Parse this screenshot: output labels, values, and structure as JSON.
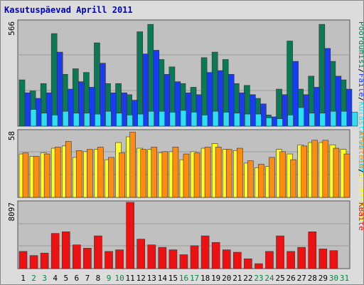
{
  "title": "Kasutuspäevad Aprill 2011",
  "colors": {
    "panel_bg": "#c0c0c0",
    "grid": "#9a9a9a",
    "visits": "#0a7a55",
    "pages": "#1a3cf0",
    "files": "#2ce0f0",
    "unique_visitors": "#ffff22",
    "sites": "#ff8c10",
    "kbytes": "#ee1111",
    "weekend_label": "#008844",
    "weekday_label": "#000000"
  },
  "chart_data": [
    {
      "type": "bar",
      "panel": "top",
      "ymax_label": "566",
      "right_label_parts": [
        {
          "text": "Pöördumisi",
          "color": "#0a7a55"
        },
        {
          "text": "/",
          "color": "#000000"
        },
        {
          "text": "Faile",
          "color": "#1a3cf0"
        },
        {
          "text": "/",
          "color": "#000000"
        },
        {
          "text": "Külastatud lehti",
          "color": "#2ce0f0"
        }
      ],
      "ylim": [
        0,
        566
      ],
      "categories": [
        "1",
        "2",
        "3",
        "4",
        "5",
        "6",
        "7",
        "8",
        "9",
        "10",
        "11",
        "12",
        "13",
        "14",
        "15",
        "16",
        "17",
        "18",
        "19",
        "20",
        "21",
        "22",
        "23",
        "24",
        "25",
        "26",
        "27",
        "28",
        "29",
        "30",
        "31"
      ],
      "series": [
        {
          "name": "Pöördumisi",
          "color": "#0a7a55",
          "values": [
            250,
            190,
            230,
            500,
            280,
            310,
            290,
            450,
            230,
            230,
            170,
            510,
            550,
            360,
            320,
            230,
            210,
            370,
            400,
            360,
            230,
            220,
            150,
            60,
            200,
            460,
            200,
            270,
            550,
            350,
            250
          ]
        },
        {
          "name": "Faile",
          "color": "#1a3cf0",
          "values": [
            180,
            150,
            180,
            400,
            200,
            240,
            210,
            340,
            180,
            180,
            140,
            390,
            410,
            280,
            240,
            180,
            170,
            290,
            300,
            280,
            180,
            170,
            120,
            50,
            170,
            350,
            170,
            210,
            420,
            270,
            200
          ]
        },
        {
          "name": "Külastatud lehti",
          "color": "#2ce0f0",
          "values": [
            90,
            70,
            60,
            80,
            70,
            70,
            65,
            80,
            70,
            60,
            65,
            80,
            80,
            75,
            85,
            75,
            60,
            80,
            75,
            70,
            65,
            65,
            45,
            40,
            60,
            100,
            70,
            70,
            80,
            80,
            75
          ]
        }
      ]
    },
    {
      "type": "bar",
      "panel": "middle",
      "ymax_label": "58",
      "right_label_parts": [
        {
          "text": "Arvuteid",
          "color": "#ff8c10"
        },
        {
          "text": "/",
          "color": "#000000"
        },
        {
          "text": "Külastajad",
          "color": "#ffff22"
        }
      ],
      "ylim": [
        0,
        58
      ],
      "categories": [
        "1",
        "2",
        "3",
        "4",
        "5",
        "6",
        "7",
        "8",
        "9",
        "10",
        "11",
        "12",
        "13",
        "14",
        "15",
        "16",
        "17",
        "18",
        "19",
        "20",
        "21",
        "22",
        "23",
        "24",
        "25",
        "26",
        "27",
        "28",
        "29",
        "30",
        "31"
      ],
      "series": [
        {
          "name": "Külastajad",
          "color": "#ffff22",
          "values": [
            38,
            36,
            39,
            43,
            45,
            35,
            40,
            42,
            33,
            48,
            53,
            43,
            42,
            39,
            40,
            33,
            40,
            43,
            47,
            42,
            41,
            30,
            26,
            27,
            42,
            38,
            46,
            48,
            48,
            46,
            42
          ]
        },
        {
          "name": "Arvuteid",
          "color": "#ff8c10",
          "values": [
            39,
            36,
            38,
            44,
            49,
            41,
            42,
            44,
            35,
            39,
            57,
            42,
            44,
            40,
            44,
            38,
            39,
            44,
            44,
            42,
            43,
            32,
            29,
            35,
            40,
            33,
            45,
            50,
            50,
            43,
            38
          ]
        }
      ]
    },
    {
      "type": "bar",
      "panel": "bottom",
      "ymax_label": "8097",
      "right_label_parts": [
        {
          "text": "KBaite",
          "color": "#ee1111"
        }
      ],
      "ylim": [
        0,
        8097
      ],
      "categories": [
        "1",
        "2",
        "3",
        "4",
        "5",
        "6",
        "7",
        "8",
        "9",
        "10",
        "11",
        "12",
        "13",
        "14",
        "15",
        "16",
        "17",
        "18",
        "19",
        "20",
        "21",
        "22",
        "23",
        "24",
        "25",
        "26",
        "27",
        "28",
        "29",
        "30",
        "31"
      ],
      "series": [
        {
          "name": "KBaite",
          "color": "#ee1111",
          "values": [
            2100,
            1600,
            1900,
            4300,
            4500,
            2900,
            2500,
            4000,
            2100,
            2300,
            8097,
            3600,
            2900,
            2600,
            2300,
            1700,
            2800,
            4000,
            3200,
            2300,
            2000,
            1200,
            600,
            2100,
            4000,
            2100,
            2600,
            4500,
            2400,
            2200,
            0
          ]
        }
      ]
    }
  ],
  "x_labels": {
    "days": [
      "1",
      "2",
      "3",
      "4",
      "5",
      "6",
      "7",
      "8",
      "9",
      "10",
      "11",
      "12",
      "13",
      "14",
      "15",
      "16",
      "17",
      "18",
      "19",
      "20",
      "21",
      "22",
      "23",
      "24",
      "25",
      "26",
      "27",
      "28",
      "29",
      "30",
      "31"
    ],
    "weekend_days": [
      "2",
      "3",
      "9",
      "10",
      "16",
      "17",
      "23",
      "24",
      "30",
      "31"
    ]
  }
}
